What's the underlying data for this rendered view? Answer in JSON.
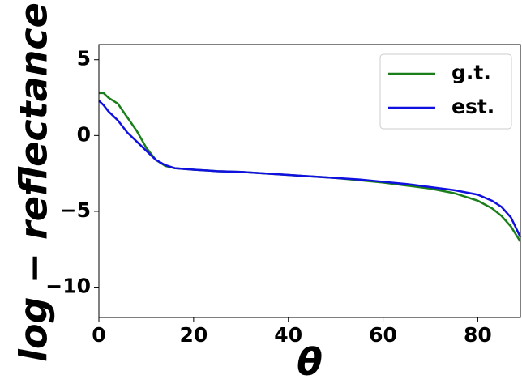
{
  "chart_data": {
    "type": "line",
    "x_label": "θ",
    "y_label": "log − reflectance",
    "x": [
      0,
      1,
      2,
      4,
      6,
      8,
      10,
      12,
      14,
      16,
      20,
      25,
      30,
      35,
      40,
      45,
      50,
      55,
      60,
      65,
      70,
      75,
      80,
      83,
      85,
      87,
      89
    ],
    "series": [
      {
        "name": "g.t.",
        "color": "#1a7f1a",
        "values": [
          2.8,
          2.8,
          2.5,
          2.1,
          1.2,
          0.3,
          -0.8,
          -1.6,
          -2.0,
          -2.15,
          -2.25,
          -2.35,
          -2.4,
          -2.5,
          -2.6,
          -2.7,
          -2.8,
          -2.95,
          -3.1,
          -3.3,
          -3.5,
          -3.8,
          -4.3,
          -4.8,
          -5.3,
          -6.0,
          -7.0
        ]
      },
      {
        "name": "est.",
        "color": "#1010e0",
        "values": [
          2.3,
          2.0,
          1.6,
          1.0,
          0.2,
          -0.4,
          -1.0,
          -1.6,
          -1.95,
          -2.15,
          -2.25,
          -2.35,
          -2.4,
          -2.5,
          -2.6,
          -2.7,
          -2.8,
          -2.9,
          -3.05,
          -3.2,
          -3.4,
          -3.6,
          -3.9,
          -4.3,
          -4.7,
          -5.4,
          -6.7
        ]
      }
    ],
    "xlim": [
      0,
      89
    ],
    "ylim": [
      -12,
      6
    ],
    "xticks": [
      0,
      20,
      40,
      60,
      80
    ],
    "yticks": [
      5,
      0,
      {
        "value": -5,
        "label": "−5"
      },
      {
        "value": -10,
        "label": "−10"
      }
    ],
    "legend": "upper right"
  }
}
